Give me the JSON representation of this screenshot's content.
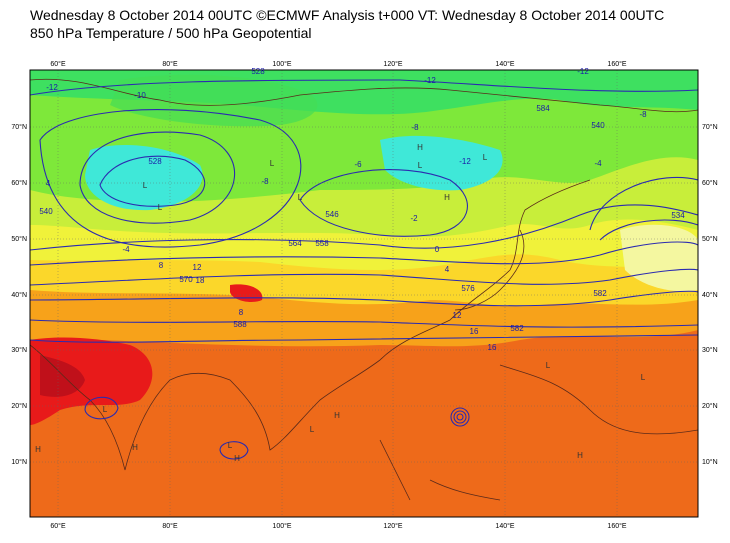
{
  "header": {
    "title": "Wednesday 8 October 2014 00UTC ©ECMWF Analysis t+000 VT: Wednesday 8 October 2014 00UTC",
    "subtitle": "850 hPa Temperature / 500 hPa Geopotential"
  },
  "map": {
    "lon_labels": [
      "60°E",
      "80°E",
      "100°E",
      "120°E",
      "140°E",
      "160°E"
    ],
    "lat_labels": [
      "70°N",
      "60°N",
      "50°N",
      "40°N",
      "30°N",
      "20°N",
      "10°N"
    ],
    "contour_labels": [
      "-12",
      "528",
      "-12",
      "-12",
      "-10",
      "584",
      "-8",
      "540",
      "-12",
      "-8",
      "-6",
      "546",
      "-8",
      "-4",
      "558",
      "528",
      "-4",
      "564",
      "-2",
      "540",
      "0",
      "534",
      "4",
      "570",
      "8",
      "576",
      "12",
      "18",
      "16",
      "582",
      "12",
      "588",
      "16",
      "582",
      "8",
      "4"
    ],
    "pressure_labels": [
      "L",
      "L",
      "L",
      "H",
      "L",
      "H",
      "L",
      "L",
      "H",
      "H",
      "L",
      "H",
      "L",
      "L",
      "H",
      "L",
      "H",
      "L"
    ]
  }
}
